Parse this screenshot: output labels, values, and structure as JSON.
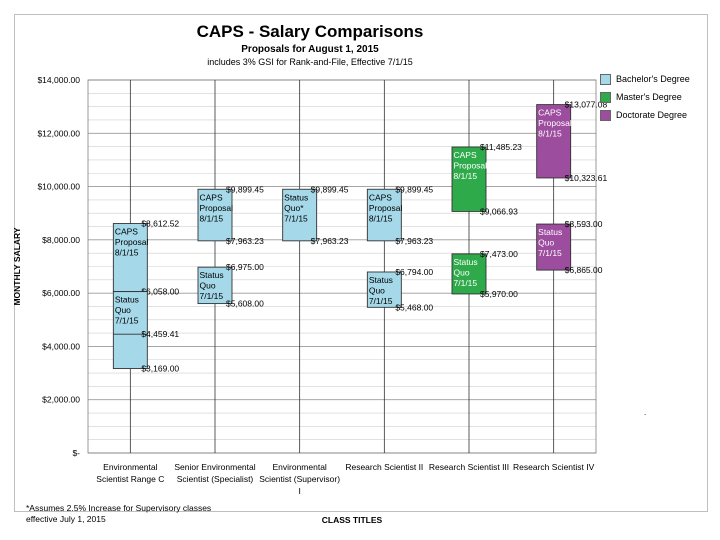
{
  "chart_data": {
    "type": "box-range",
    "title": "CAPS - Salary Comparisons",
    "subtitle": "Proposals for August 1, 2015",
    "note": "includes 3% GSI for Rank-and-File, Effective 7/1/15",
    "xlabel": "CLASS TITLES",
    "ylabel": "MONTHLY SALARY",
    "ylim": [
      0,
      14000
    ],
    "yticks": [
      0,
      2000,
      4000,
      6000,
      8000,
      10000,
      12000,
      14000
    ],
    "ytick_labels": [
      "$-",
      "$2,000.00",
      "$4,000.00",
      "$6,000.00",
      "$8,000.00",
      "$10,000.00",
      "$12,000.00",
      "$14,000.00"
    ],
    "grid": true,
    "legend_position": "right",
    "legend": [
      {
        "name": "Bachelor's Degree",
        "color": "#a5d8e8"
      },
      {
        "name": "Master's Degree",
        "color": "#2eaa4a"
      },
      {
        "name": "Doctorate Degree",
        "color": "#9c4d9e"
      }
    ],
    "categories": [
      [
        "Environmental",
        "Scientist Range C"
      ],
      [
        "Senior Environmental",
        "Scientist (Specialist)"
      ],
      [
        "Environmental",
        "Scientist (Supervisor)",
        "I"
      ],
      [
        "Research Scientist II"
      ],
      [
        "Research Scientist III"
      ],
      [
        "Research Scientist IV"
      ]
    ],
    "whisker_range": [
      0,
      14000
    ],
    "boxes": [
      {
        "category": 0,
        "degree": 0,
        "low": 6058.0,
        "high": 8612.52,
        "label_lines": [
          "CAPS",
          "Proposal",
          "8/1/15"
        ],
        "low_label": "$6,058.00",
        "high_label": "$8,612.52"
      },
      {
        "category": 0,
        "degree": 0,
        "low": 3169.0,
        "high": 6058.0,
        "mid": 4459.41,
        "label_lines": [
          "Status",
          "Quo",
          "7/1/15"
        ],
        "low_label": "$3,169.00",
        "high_label": "",
        "mid_label": "$4,459.41"
      },
      {
        "category": 1,
        "degree": 0,
        "low": 7963.23,
        "high": 9899.45,
        "label_lines": [
          "CAPS",
          "Proposal",
          "8/1/15"
        ],
        "low_label": "$7,963.23",
        "high_label": "$9,899.45"
      },
      {
        "category": 1,
        "degree": 0,
        "low": 5608.0,
        "high": 6975.0,
        "label_lines": [
          "Status",
          "Quo",
          "7/1/15"
        ],
        "low_label": "$5,608.00",
        "high_label": "$6,975.00"
      },
      {
        "category": 2,
        "degree": 0,
        "low": 7963.23,
        "high": 9899.45,
        "label_lines": [
          "Status",
          "Quo*",
          "7/1/15"
        ],
        "low_label": "$7,963.23",
        "high_label": "$9,899.45"
      },
      {
        "category": 3,
        "degree": 0,
        "low": 7963.23,
        "high": 9899.45,
        "label_lines": [
          "CAPS",
          "Proposal",
          "8/1/15"
        ],
        "low_label": "$7,963.23",
        "high_label": "$9,899.45"
      },
      {
        "category": 3,
        "degree": 0,
        "low": 5468.0,
        "high": 6794.0,
        "label_lines": [
          "Status",
          "Quo",
          "7/1/15"
        ],
        "low_label": "$5,468.00",
        "high_label": "$6,794.00"
      },
      {
        "category": 4,
        "degree": 1,
        "low": 9066.93,
        "high": 11485.23,
        "label_lines": [
          "CAPS",
          "Proposal",
          "8/1/15"
        ],
        "low_label": "$9,066.93",
        "high_label": "$11,485.23"
      },
      {
        "category": 4,
        "degree": 1,
        "low": 5970.0,
        "high": 7473.0,
        "label_lines": [
          "Status",
          "Quo",
          "7/1/15"
        ],
        "low_label": "$5,970.00",
        "high_label": "$7,473.00"
      },
      {
        "category": 5,
        "degree": 2,
        "low": 10323.61,
        "high": 13077.08,
        "label_lines": [
          "CAPS",
          "Proposal",
          "8/1/15"
        ],
        "low_label": "$10,323.61",
        "high_label": "$13,077.08"
      },
      {
        "category": 5,
        "degree": 2,
        "low": 6865.0,
        "high": 8593.0,
        "label_lines": [
          "Status",
          "Quo",
          "7/1/15"
        ],
        "low_label": "$6,865.00",
        "high_label": "$8,593.00"
      }
    ]
  },
  "footnote_lines": [
    "*Assumes 2.5% Increase for Supervisory classes",
    "effective July 1, 2015"
  ],
  "edge_mark": "."
}
